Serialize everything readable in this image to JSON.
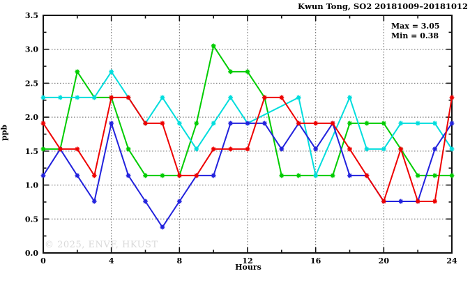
{
  "title": "Kwun Tong, SO2 20181009–20181012",
  "annotation": {
    "max_label": "Max = 3.05",
    "min_label": "Min = 0.38"
  },
  "watermark": "© 2025, ENVF, HKUST",
  "chart_data": {
    "type": "line",
    "title": "Kwun Tong, SO2 20181009–20181012",
    "xlabel": "Hours",
    "ylabel": "ppb",
    "xlim": [
      0,
      24
    ],
    "ylim": [
      0,
      3.5
    ],
    "grid": true,
    "legend_position": "none",
    "max": 3.05,
    "min": 0.38,
    "x_major_ticks": [
      0,
      4,
      8,
      12,
      16,
      20,
      24
    ],
    "x_minor_ticks": [
      2,
      6,
      10,
      14,
      18,
      22
    ],
    "x_tick_labels": [
      "0",
      "4",
      "8",
      "12",
      "16",
      "20",
      "24"
    ],
    "y_major_ticks": [
      0,
      0.5,
      1,
      1.5,
      2,
      2.5,
      3,
      3.5
    ],
    "y_minor_step": 0.25,
    "y_tick_labels": [
      "0.0",
      "0.5",
      "1.0",
      "1.5",
      "2.0",
      "2.5",
      "3.0",
      "3.5"
    ],
    "x": [
      0,
      1,
      2,
      3,
      4,
      5,
      6,
      7,
      8,
      9,
      10,
      11,
      12,
      13,
      14,
      15,
      16,
      17,
      18,
      19,
      20,
      21,
      22,
      23,
      24
    ],
    "series": [
      {
        "name": "series-green",
        "color": "#00cc00",
        "values": [
          1.53,
          1.53,
          2.67,
          2.29,
          2.29,
          1.53,
          1.14,
          1.14,
          1.14,
          1.91,
          3.05,
          2.67,
          2.67,
          2.29,
          1.14,
          1.14,
          1.14,
          1.14,
          1.91,
          1.91,
          1.91,
          1.53,
          1.14,
          1.14,
          1.14
        ]
      },
      {
        "name": "series-cyan",
        "color": "#00dddd",
        "values": [
          2.29,
          2.29,
          2.29,
          2.29,
          2.67,
          2.29,
          1.91,
          2.29,
          1.91,
          1.53,
          1.91,
          2.29,
          1.91,
          null,
          null,
          2.29,
          1.14,
          null,
          2.29,
          1.53,
          1.53,
          1.91,
          1.91,
          1.91,
          1.53
        ]
      },
      {
        "name": "series-blue",
        "color": "#2222dd",
        "values": [
          1.14,
          1.53,
          1.14,
          0.76,
          1.91,
          1.14,
          0.76,
          0.38,
          0.76,
          1.14,
          1.14,
          1.91,
          1.91,
          1.91,
          1.53,
          1.91,
          1.53,
          1.91,
          1.14,
          1.14,
          0.76,
          0.76,
          0.76,
          1.53,
          1.91
        ]
      },
      {
        "name": "series-red",
        "color": "#ee0000",
        "values": [
          1.91,
          1.53,
          1.53,
          1.14,
          2.29,
          2.29,
          1.91,
          1.91,
          1.14,
          1.14,
          1.53,
          1.53,
          1.53,
          2.29,
          2.29,
          1.91,
          1.91,
          1.91,
          1.53,
          1.14,
          0.76,
          1.53,
          0.76,
          0.76,
          2.29
        ]
      }
    ]
  }
}
